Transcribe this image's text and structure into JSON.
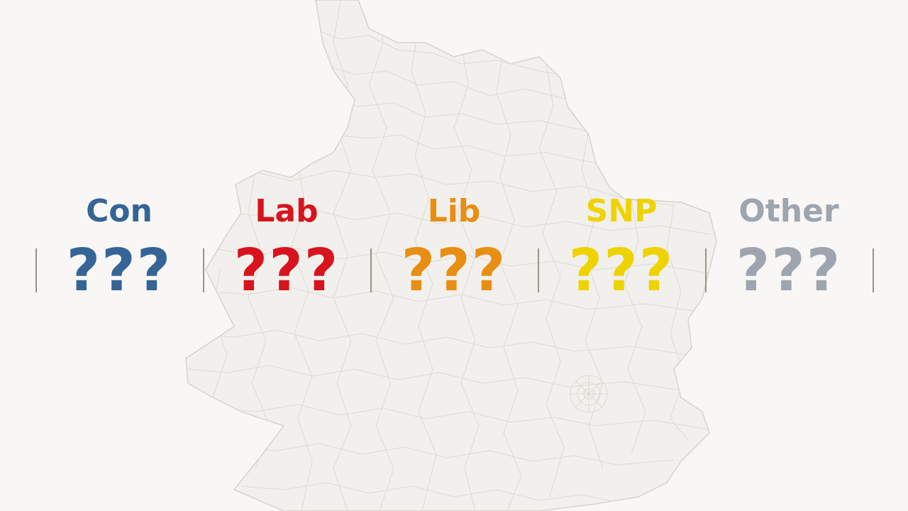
{
  "map": {
    "region": "England and Wales constituency boundaries",
    "fill": "#f1f0ec",
    "stroke": "#dcdad5"
  },
  "results": {
    "parties": [
      {
        "name": "Con",
        "seats": "???",
        "color": "#356496"
      },
      {
        "name": "Lab",
        "seats": "???",
        "color": "#d7141e"
      },
      {
        "name": "Lib",
        "seats": "???",
        "color": "#e88e12"
      },
      {
        "name": "SNP",
        "seats": "???",
        "color": "#efd300"
      },
      {
        "name": "Other",
        "seats": "???",
        "color": "#9ea5ae"
      }
    ],
    "divider_color": "#9a9386"
  }
}
